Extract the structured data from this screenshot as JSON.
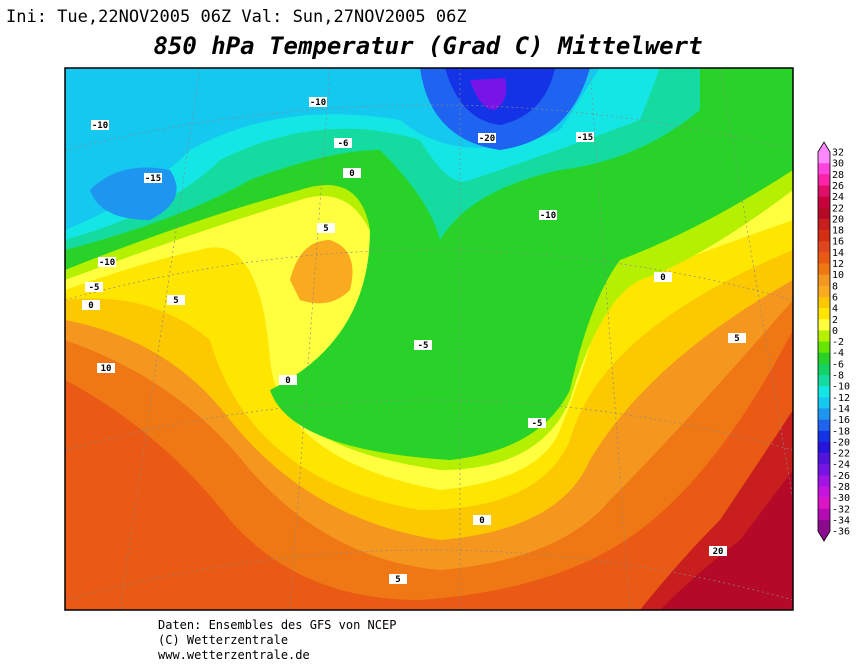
{
  "header": {
    "run": "Ini: Tue,22NOV2005 06Z Val: Sun,27NOV2005 06Z",
    "title": "850 hPa Temperatur (Grad C) Mittelwert"
  },
  "map": {
    "contour_labels": [
      -10,
      -10,
      -20,
      -15,
      -6,
      0,
      -15,
      -10,
      5,
      -10,
      0,
      -5,
      5,
      0,
      -5,
      5,
      10,
      0,
      -5,
      0,
      20,
      5
    ]
  },
  "legend": {
    "labels": [
      32,
      30,
      28,
      26,
      24,
      22,
      20,
      18,
      16,
      14,
      12,
      10,
      8,
      6,
      4,
      2,
      0,
      -2,
      -4,
      -6,
      -8,
      -10,
      -12,
      -14,
      -16,
      -18,
      -20,
      -22,
      -24,
      -26,
      -28,
      -30,
      -32,
      -34,
      -36
    ],
    "colors": [
      "#ff88ff",
      "#ff44dd",
      "#ff22aa",
      "#e0106a",
      "#c8003c",
      "#b40a28",
      "#c81e1e",
      "#d42d14",
      "#e0461e",
      "#ea5a14",
      "#f07814",
      "#f5961e",
      "#faaa1e",
      "#fcc800",
      "#ffe600",
      "#ffff40",
      "#b4f000",
      "#64e600",
      "#28d228",
      "#14d264",
      "#14dca0",
      "#14e6e6",
      "#14c8f0",
      "#1e96f0",
      "#1e64f0",
      "#1432e6",
      "#2814dc",
      "#5014dc",
      "#7814e6",
      "#a014e6",
      "#c814dc",
      "#dc14c8",
      "#b40ab4",
      "#8c0a8c"
    ]
  },
  "footer": {
    "lines": [
      "Daten: Ensembles des GFS von NCEP",
      "(C) Wetterzentrale",
      "www.wetterzentrale.de"
    ]
  }
}
